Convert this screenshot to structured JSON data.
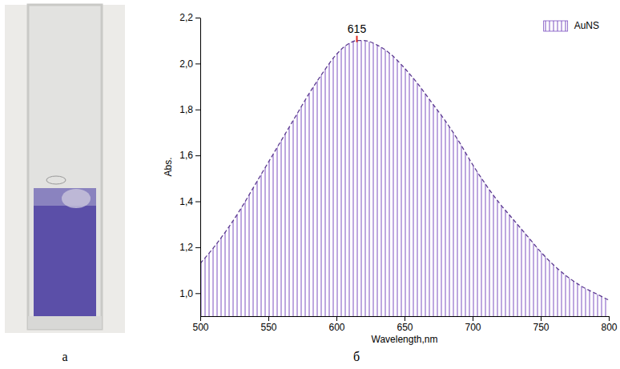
{
  "panel_labels": [
    "а",
    "б"
  ],
  "chart_data": {
    "type": "area",
    "x_label": "Wavelength,nm",
    "y_label": "Abs.",
    "x": [
      500,
      510,
      520,
      530,
      540,
      550,
      560,
      570,
      580,
      590,
      600,
      610,
      615,
      620,
      630,
      640,
      650,
      660,
      670,
      680,
      690,
      700,
      710,
      720,
      730,
      740,
      750,
      760,
      770,
      780,
      790,
      800
    ],
    "series": [
      {
        "name": "AuNS",
        "color": "#7b4fc0",
        "line_style": "dashed",
        "values": [
          1.13,
          1.2,
          1.28,
          1.37,
          1.47,
          1.57,
          1.67,
          1.77,
          1.87,
          1.96,
          2.04,
          2.09,
          2.1,
          2.1,
          2.08,
          2.04,
          1.98,
          1.91,
          1.83,
          1.75,
          1.66,
          1.56,
          1.47,
          1.39,
          1.32,
          1.25,
          1.18,
          1.12,
          1.07,
          1.03,
          1.0,
          0.97
        ]
      }
    ],
    "xlim": [
      500,
      800
    ],
    "xticks": [
      500,
      550,
      600,
      650,
      700,
      750,
      800
    ],
    "ylim": [
      0.9,
      2.2
    ],
    "yticks": [
      {
        "value": 1,
        "label": "1,0"
      },
      {
        "value": 1.2,
        "label": "1,2"
      },
      {
        "value": 1.4,
        "label": "1,4"
      },
      {
        "value": 1.6,
        "label": "1,6"
      },
      {
        "value": 1.8,
        "label": "1,8"
      },
      {
        "value": 2,
        "label": "2,0"
      },
      {
        "value": 2.2,
        "label": "2,2"
      }
    ],
    "annotations": [
      {
        "x": 615,
        "y": 2.1
      }
    ],
    "legend": "upper right",
    "grid": false
  }
}
